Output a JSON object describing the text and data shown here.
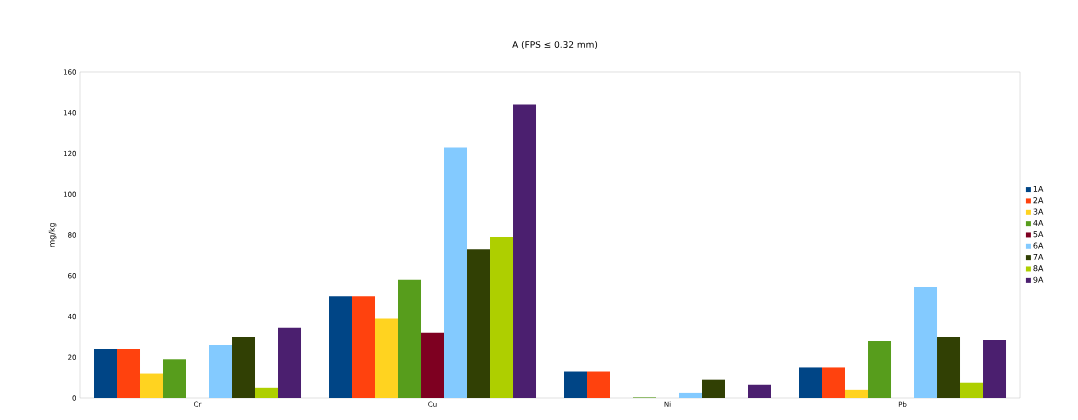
{
  "chart_data": {
    "type": "bar",
    "title": "A (FPS ≤ 0.32 mm)",
    "ylabel": "mg/kg",
    "categories": [
      "Cr",
      "Cu",
      "Ni",
      "Pb"
    ],
    "series": [
      {
        "name": "1A",
        "color": "#004586",
        "values": [
          24,
          50,
          13,
          15
        ]
      },
      {
        "name": "2A",
        "color": "#ff420e",
        "values": [
          24,
          50,
          13,
          15
        ]
      },
      {
        "name": "3A",
        "color": "#ffd320",
        "values": [
          12,
          39,
          0,
          4
        ]
      },
      {
        "name": "4A",
        "color": "#579d1c",
        "values": [
          19,
          58,
          0.3,
          28
        ]
      },
      {
        "name": "5A",
        "color": "#7e0021",
        "values": [
          0,
          32,
          0,
          0
        ]
      },
      {
        "name": "6A",
        "color": "#83caff",
        "values": [
          26,
          123,
          2.5,
          54.5
        ]
      },
      {
        "name": "7A",
        "color": "#314004",
        "values": [
          30,
          73,
          9,
          30
        ]
      },
      {
        "name": "8A",
        "color": "#aecf00",
        "values": [
          5,
          79,
          0,
          7.5
        ]
      },
      {
        "name": "9A",
        "color": "#4b1f6f",
        "values": [
          34.5,
          144,
          6.5,
          28.5
        ]
      }
    ],
    "ylim": [
      0,
      160
    ],
    "yticks": [
      0,
      20,
      40,
      60,
      80,
      100,
      120,
      140,
      160
    ],
    "grid": false,
    "legend": "right"
  }
}
